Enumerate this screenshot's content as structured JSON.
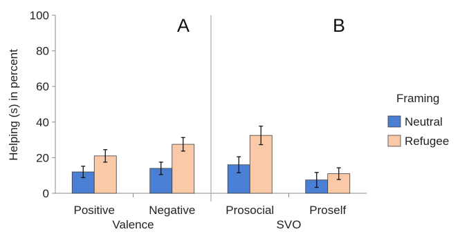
{
  "chart_data": {
    "type": "bar",
    "ylabel": "Helping (s) in percent",
    "ylim": [
      0,
      100
    ],
    "yticks": [
      0,
      20,
      40,
      60,
      80,
      100
    ],
    "colors": {
      "Neutral": "#4a7fd3",
      "Refugee": "#f9c9a8"
    },
    "legend": {
      "title": "Framing",
      "position": "right",
      "entries": [
        "Neutral",
        "Refugee"
      ]
    },
    "panels": [
      {
        "letter": "A",
        "xlabel": "Valence",
        "categories": [
          "Positive",
          "Negative"
        ],
        "series": [
          {
            "name": "Neutral",
            "values": [
              12,
              14
            ],
            "errors": [
              3.2,
              3.5
            ]
          },
          {
            "name": "Refugee",
            "values": [
              21,
              27.5
            ],
            "errors": [
              3.5,
              3.8
            ]
          }
        ]
      },
      {
        "letter": "B",
        "xlabel": "SVO",
        "categories": [
          "Prosocial",
          "Proself"
        ],
        "series": [
          {
            "name": "Neutral",
            "values": [
              16,
              7.5
            ],
            "errors": [
              4.5,
              4.2
            ]
          },
          {
            "name": "Refugee",
            "values": [
              32.5,
              11
            ],
            "errors": [
              5.2,
              3.3
            ]
          }
        ]
      }
    ]
  }
}
